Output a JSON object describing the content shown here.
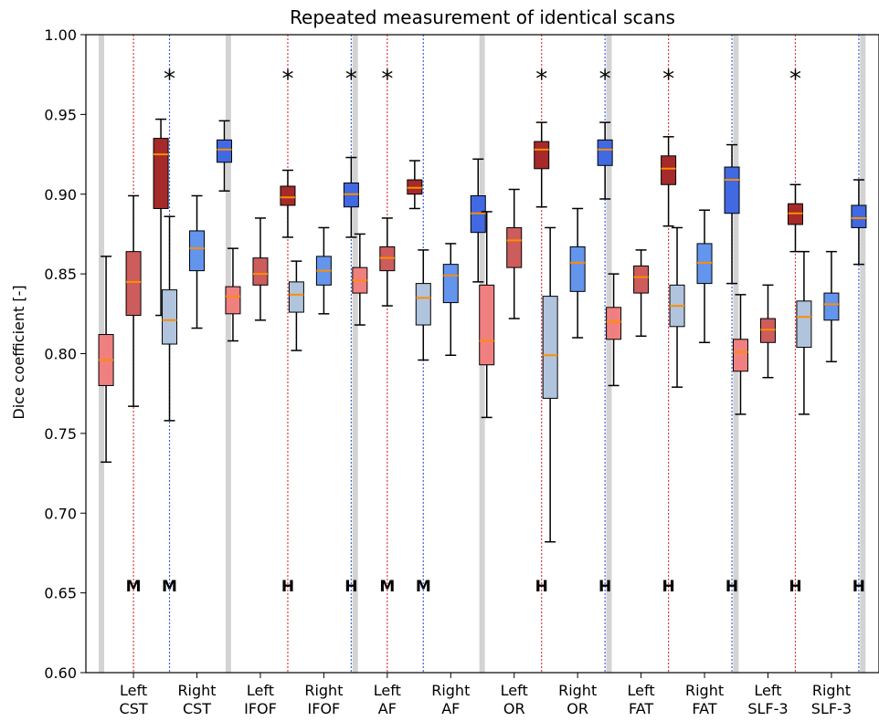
{
  "chart_data": {
    "type": "box",
    "title": "Repeated measurement of identical scans",
    "ylabel": "Dice coefficient [-]",
    "xlabel": "",
    "ylim": [
      0.6,
      1.0
    ],
    "yticks": [
      "0.60",
      "0.65",
      "0.70",
      "0.75",
      "0.80",
      "0.85",
      "0.90",
      "0.95",
      "1.00"
    ],
    "grid": false,
    "colors": {
      "left_light": "#f08080",
      "left_mid": "#cd5c5c",
      "left_dark": "#a52a2a",
      "right_light": "#b0c4de",
      "right_mid": "#6495ed",
      "right_dark": "#4169e1",
      "median": "#ff8c00",
      "separator": "#d3d3d3",
      "left_line": "#dc3c3c",
      "right_line": "#3c64dc"
    },
    "groups": [
      {
        "label_top": "Left",
        "label_bottom": "CST",
        "side": "left",
        "star": false,
        "letter": "M",
        "line_series": 1,
        "boxes": [
          {
            "q1": 0.78,
            "median": 0.796,
            "q3": 0.812,
            "wlo": 0.732,
            "whi": 0.861
          },
          {
            "q1": 0.824,
            "median": 0.845,
            "q3": 0.864,
            "wlo": 0.767,
            "whi": 0.899
          },
          {
            "q1": 0.891,
            "median": 0.925,
            "q3": 0.935,
            "wlo": 0.824,
            "whi": 0.947
          }
        ]
      },
      {
        "label_top": "Right",
        "label_bottom": "CST",
        "side": "right",
        "star": true,
        "letter": "M",
        "line_series": 0,
        "boxes": [
          {
            "q1": 0.806,
            "median": 0.821,
            "q3": 0.84,
            "wlo": 0.758,
            "whi": 0.886
          },
          {
            "q1": 0.852,
            "median": 0.866,
            "q3": 0.877,
            "wlo": 0.816,
            "whi": 0.899
          },
          {
            "q1": 0.92,
            "median": 0.928,
            "q3": 0.934,
            "wlo": 0.902,
            "whi": 0.946
          }
        ]
      },
      {
        "label_top": "Left",
        "label_bottom": "IFOF",
        "side": "left",
        "star": true,
        "letter": "H",
        "line_series": 2,
        "boxes": [
          {
            "q1": 0.825,
            "median": 0.836,
            "q3": 0.842,
            "wlo": 0.808,
            "whi": 0.866
          },
          {
            "q1": 0.843,
            "median": 0.85,
            "q3": 0.86,
            "wlo": 0.821,
            "whi": 0.885
          },
          {
            "q1": 0.893,
            "median": 0.898,
            "q3": 0.905,
            "wlo": 0.873,
            "whi": 0.915
          }
        ]
      },
      {
        "label_top": "Right",
        "label_bottom": "IFOF",
        "side": "right",
        "star": true,
        "letter": "H",
        "line_series": 2,
        "boxes": [
          {
            "q1": 0.826,
            "median": 0.837,
            "q3": 0.845,
            "wlo": 0.802,
            "whi": 0.858
          },
          {
            "q1": 0.843,
            "median": 0.852,
            "q3": 0.861,
            "wlo": 0.825,
            "whi": 0.879
          },
          {
            "q1": 0.892,
            "median": 0.9,
            "q3": 0.907,
            "wlo": 0.873,
            "whi": 0.923
          }
        ]
      },
      {
        "label_top": "Left",
        "label_bottom": "AF",
        "side": "left",
        "star": true,
        "letter": "M",
        "line_series": 1,
        "boxes": [
          {
            "q1": 0.838,
            "median": 0.846,
            "q3": 0.854,
            "wlo": 0.818,
            "whi": 0.875
          },
          {
            "q1": 0.852,
            "median": 0.86,
            "q3": 0.867,
            "wlo": 0.83,
            "whi": 0.885
          },
          {
            "q1": 0.9,
            "median": 0.904,
            "q3": 0.909,
            "wlo": 0.891,
            "whi": 0.921
          }
        ]
      },
      {
        "label_top": "Right",
        "label_bottom": "AF",
        "side": "right",
        "star": false,
        "letter": "M",
        "line_series": 0,
        "boxes": [
          {
            "q1": 0.818,
            "median": 0.835,
            "q3": 0.844,
            "wlo": 0.796,
            "whi": 0.865
          },
          {
            "q1": 0.832,
            "median": 0.849,
            "q3": 0.856,
            "wlo": 0.799,
            "whi": 0.869
          },
          {
            "q1": 0.876,
            "median": 0.888,
            "q3": 0.899,
            "wlo": 0.845,
            "whi": 0.922
          }
        ]
      },
      {
        "label_top": "Left",
        "label_bottom": "OR",
        "side": "left",
        "star": true,
        "letter": "H",
        "line_series": 2,
        "boxes": [
          {
            "q1": 0.793,
            "median": 0.808,
            "q3": 0.843,
            "wlo": 0.76,
            "whi": 0.889
          },
          {
            "q1": 0.854,
            "median": 0.871,
            "q3": 0.879,
            "wlo": 0.822,
            "whi": 0.903
          },
          {
            "q1": 0.916,
            "median": 0.928,
            "q3": 0.933,
            "wlo": 0.892,
            "whi": 0.945
          }
        ]
      },
      {
        "label_top": "Right",
        "label_bottom": "OR",
        "side": "right",
        "star": true,
        "letter": "H",
        "line_series": 2,
        "boxes": [
          {
            "q1": 0.772,
            "median": 0.799,
            "q3": 0.836,
            "wlo": 0.682,
            "whi": 0.879
          },
          {
            "q1": 0.839,
            "median": 0.857,
            "q3": 0.867,
            "wlo": 0.81,
            "whi": 0.891
          },
          {
            "q1": 0.918,
            "median": 0.928,
            "q3": 0.934,
            "wlo": 0.897,
            "whi": 0.945
          }
        ]
      },
      {
        "label_top": "Left",
        "label_bottom": "FAT",
        "side": "left",
        "star": true,
        "letter": "H",
        "line_series": 2,
        "boxes": [
          {
            "q1": 0.809,
            "median": 0.82,
            "q3": 0.829,
            "wlo": 0.78,
            "whi": 0.85
          },
          {
            "q1": 0.838,
            "median": 0.848,
            "q3": 0.855,
            "wlo": 0.811,
            "whi": 0.865
          },
          {
            "q1": 0.906,
            "median": 0.916,
            "q3": 0.924,
            "wlo": 0.88,
            "whi": 0.936
          }
        ]
      },
      {
        "label_top": "Right",
        "label_bottom": "FAT",
        "side": "right",
        "star": false,
        "letter": "H",
        "line_series": 2,
        "boxes": [
          {
            "q1": 0.817,
            "median": 0.83,
            "q3": 0.843,
            "wlo": 0.779,
            "whi": 0.879
          },
          {
            "q1": 0.844,
            "median": 0.857,
            "q3": 0.869,
            "wlo": 0.807,
            "whi": 0.89
          },
          {
            "q1": 0.888,
            "median": 0.909,
            "q3": 0.917,
            "wlo": 0.844,
            "whi": 0.931
          }
        ]
      },
      {
        "label_top": "Left",
        "label_bottom": "SLF-3",
        "side": "left",
        "star": true,
        "letter": "H",
        "line_series": 2,
        "boxes": [
          {
            "q1": 0.789,
            "median": 0.801,
            "q3": 0.809,
            "wlo": 0.762,
            "whi": 0.837
          },
          {
            "q1": 0.807,
            "median": 0.815,
            "q3": 0.822,
            "wlo": 0.785,
            "whi": 0.843
          },
          {
            "q1": 0.881,
            "median": 0.888,
            "q3": 0.894,
            "wlo": 0.864,
            "whi": 0.906
          }
        ]
      },
      {
        "label_top": "Right",
        "label_bottom": "SLF-3",
        "side": "right",
        "star": false,
        "letter": "H",
        "line_series": 2,
        "boxes": [
          {
            "q1": 0.804,
            "median": 0.823,
            "q3": 0.833,
            "wlo": 0.762,
            "whi": 0.864
          },
          {
            "q1": 0.821,
            "median": 0.831,
            "q3": 0.838,
            "wlo": 0.795,
            "whi": 0.864
          },
          {
            "q1": 0.879,
            "median": 0.885,
            "q3": 0.893,
            "wlo": 0.856,
            "whi": 0.909
          }
        ]
      }
    ]
  }
}
